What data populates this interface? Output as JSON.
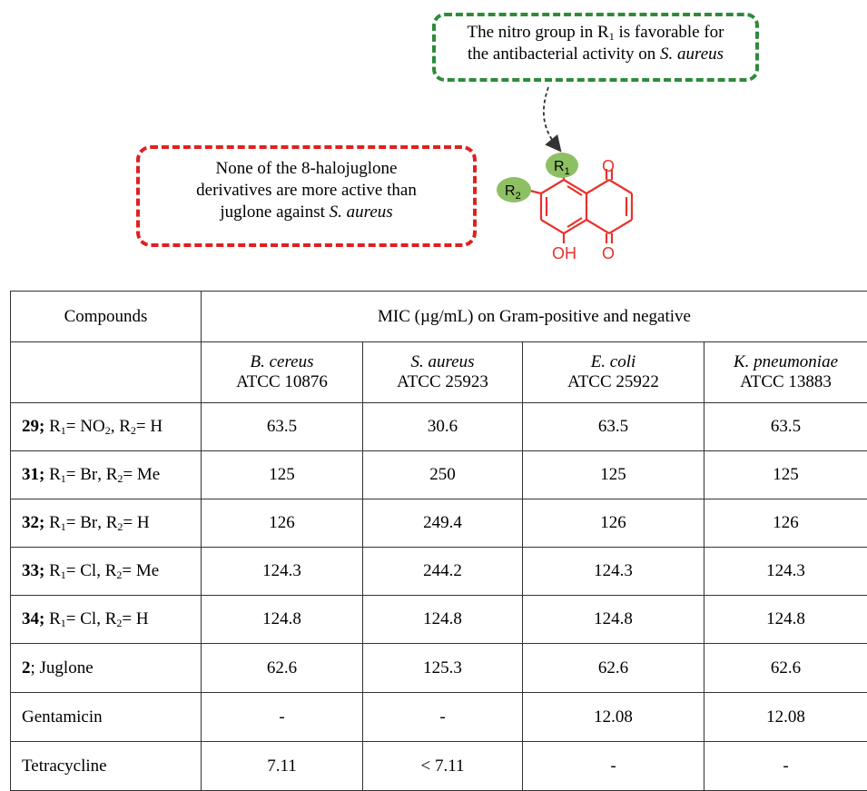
{
  "annotations": {
    "green_note": {
      "line1_before": "The nitro group in R",
      "line1_sub": "1",
      "line1_after": " is favorable for",
      "line2_before": "the antibacterial activity on ",
      "line2_italic": "S. aureus"
    },
    "red_note": {
      "line1": "None of the 8-halojuglone",
      "line2": "derivatives are more active than",
      "line3_before": "juglone against ",
      "line3_italic": "S. aureus"
    }
  },
  "structure": {
    "r1_label": "R",
    "r1_sub": "1",
    "r2_label": "R",
    "r2_sub": "2",
    "oh_label": "OH",
    "o_top_label": "O",
    "o_bottom_label": "O",
    "colors": {
      "ring": "#e8322c",
      "substituent_fill": "#8dc063",
      "arrow": "#333333"
    }
  },
  "table": {
    "header_compounds": "Compounds",
    "header_mic": "MIC (µg/mL) on Gram-positive and negative",
    "organisms": [
      {
        "name": "B. cereus",
        "strain": "ATCC 10876"
      },
      {
        "name": "S. aureus",
        "strain": "ATCC 25923"
      },
      {
        "name": "E. coli",
        "strain": "ATCC 25922"
      },
      {
        "name": "K. pneumoniae",
        "strain": "ATCC 13883"
      }
    ],
    "rows": [
      {
        "num": "29",
        "sep": ";",
        "r1": "NO",
        "r1_sub": "2",
        "r2": "H",
        "values": [
          "63.5",
          "30.6",
          "63.5",
          "63.5"
        ]
      },
      {
        "num": "31",
        "sep": ";",
        "r1": "Br",
        "r1_sub": "",
        "r2": "Me",
        "values": [
          "125",
          "250",
          "125",
          "125"
        ]
      },
      {
        "num": "32",
        "sep": ";",
        "r1": "Br",
        "r1_sub": "",
        "r2": "H",
        "values": [
          "126",
          "249.4",
          "126",
          "126"
        ]
      },
      {
        "num": "33",
        "sep": ";",
        "r1": "Cl",
        "r1_sub": "",
        "r2": "Me",
        "values": [
          "124.3",
          "244.2",
          "124.3",
          "124.3"
        ]
      },
      {
        "num": "34",
        "sep": ";",
        "r1": "Cl",
        "r1_sub": "",
        "r2": "H",
        "values": [
          "124.8",
          "124.8",
          "124.8",
          "124.8"
        ]
      }
    ],
    "juglone": {
      "num": "2",
      "label": "; Juglone",
      "values": [
        "62.6",
        "125.3",
        "62.6",
        "62.6"
      ]
    },
    "controls": [
      {
        "label": "Gentamicin",
        "values": [
          "-",
          "-",
          "12.08",
          "12.08"
        ]
      },
      {
        "label": "Tetracycline",
        "values": [
          "7.11",
          "< 7.11",
          "-",
          "-"
        ]
      }
    ],
    "r_prefix1": "R",
    "r_sub1": "1",
    "r_prefix2": "R",
    "r_sub2": "2"
  }
}
